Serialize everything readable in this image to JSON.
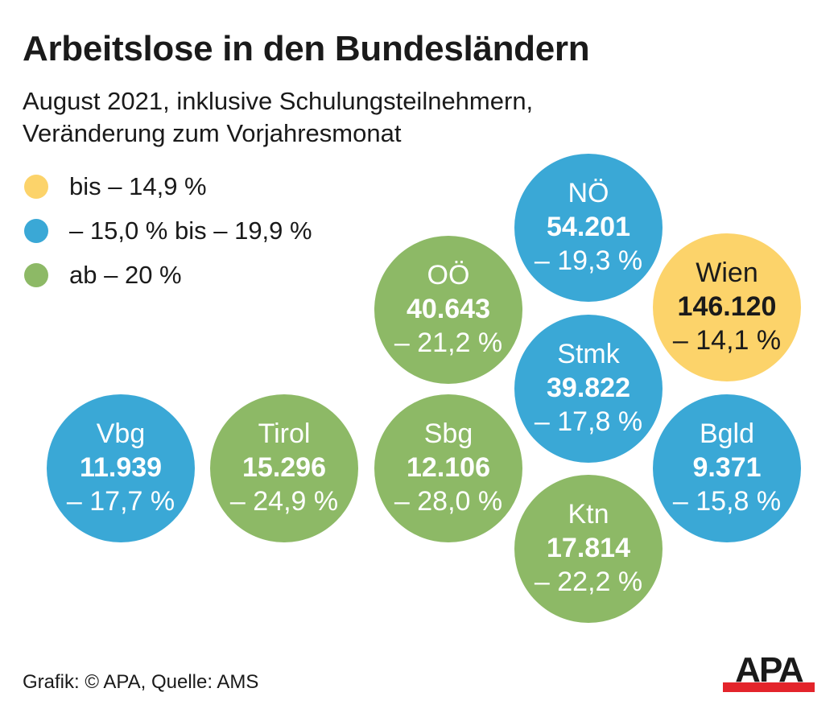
{
  "title": "Arbeitslose in den Bundesländern",
  "subtitle": [
    "August 2021, inklusive Schulungsteilnehmern,",
    "Veränderung zum Vorjahresmonat"
  ],
  "legend": [
    {
      "label": "bis – 14,9 %",
      "color": "#fcd36a"
    },
    {
      "label": "– 15,0 % bis – 19,9 %",
      "color": "#3aa8d6"
    },
    {
      "label": "ab – 20 %",
      "color": "#8db966"
    }
  ],
  "chart_data": {
    "type": "bubble-grid",
    "title": "Arbeitslose in den Bundesländern",
    "items": [
      {
        "name": "NÖ",
        "value": "54.201",
        "change": "– 19,3 %",
        "category": 1
      },
      {
        "name": "Wien",
        "value": "146.120",
        "change": "– 14,1 %",
        "category": 0
      },
      {
        "name": "OÖ",
        "value": "40.643",
        "change": "– 21,2 %",
        "category": 2
      },
      {
        "name": "Stmk",
        "value": "39.822",
        "change": "– 17,8 %",
        "category": 1
      },
      {
        "name": "Vbg",
        "value": "11.939",
        "change": "– 17,7 %",
        "category": 1
      },
      {
        "name": "Tirol",
        "value": "15.296",
        "change": "– 24,9 %",
        "category": 2
      },
      {
        "name": "Sbg",
        "value": "12.106",
        "change": "– 28,0 %",
        "category": 2
      },
      {
        "name": "Bgld",
        "value": "9.371",
        "change": "– 15,8 %",
        "category": 1
      },
      {
        "name": "Ktn",
        "value": "17.814",
        "change": "– 22,2 %",
        "category": 2
      }
    ]
  },
  "footer": "Grafik: © APA, Quelle: AMS",
  "logo_text": "APA"
}
